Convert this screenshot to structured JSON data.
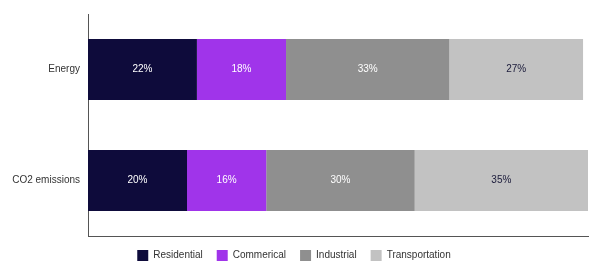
{
  "chart_data": {
    "type": "bar",
    "orientation": "horizontal",
    "stacked": true,
    "categories": [
      "Energy",
      "CO2 emissions"
    ],
    "series": [
      {
        "name": "Residential",
        "color": "#0e0b3b",
        "values": [
          22,
          20
        ],
        "value_labels": [
          "22%",
          "20%"
        ]
      },
      {
        "name": "Commerical",
        "color": "#a034ea",
        "values": [
          18,
          16
        ],
        "value_labels": [
          "18%",
          "16%"
        ]
      },
      {
        "name": "Industrial",
        "color": "#8f8f8f",
        "values": [
          33,
          30
        ],
        "value_labels": [
          "33%",
          "30%"
        ]
      },
      {
        "name": "Transportation",
        "color": "#c2c2c2",
        "values": [
          27,
          35
        ],
        "value_labels": [
          "27%",
          "35%"
        ]
      }
    ],
    "xlim": [
      0,
      101
    ],
    "data_labels": true,
    "tick_labels": "y",
    "grid": false,
    "legend": "bottom"
  }
}
